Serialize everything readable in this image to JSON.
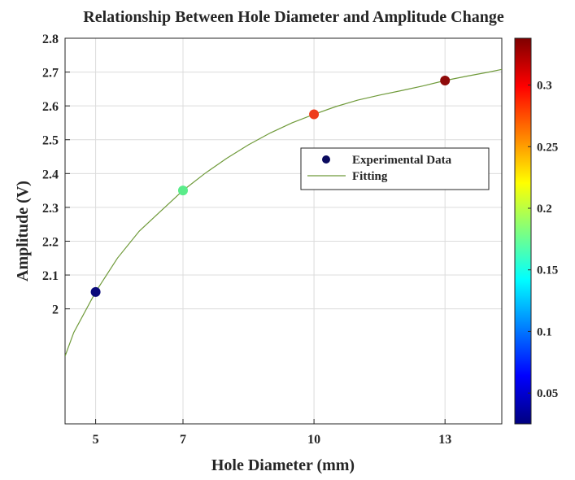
{
  "chart_data": {
    "type": "scatter",
    "title": "Relationship Between Hole Diameter and Amplitude Change",
    "xlabel": "Hole Diameter (mm)",
    "ylabel": "Amplitude (V)",
    "xlim": [
      4.3,
      14.3
    ],
    "ylim": [
      1.66,
      2.8
    ],
    "xticks": [
      5,
      7,
      10,
      13
    ],
    "xtick_labels": [
      "5",
      "7",
      "10",
      "13"
    ],
    "yticks": [
      2.0,
      2.1,
      2.2,
      2.3,
      2.4,
      2.5,
      2.6,
      2.7,
      2.8
    ],
    "ytick_labels": [
      "2",
      "2.1",
      "2.2",
      "2.3",
      "2.4",
      "2.5",
      "2.6",
      "2.7",
      "2.8"
    ],
    "grid": true,
    "legend_position": "center-right",
    "series": [
      {
        "name": "Experimental Data",
        "kind": "scatter",
        "x": [
          5,
          7,
          10,
          13
        ],
        "y": [
          2.05,
          2.35,
          2.575,
          2.675
        ],
        "color_values": [
          0.027,
          0.16,
          0.297,
          0.336
        ],
        "colors": [
          "#0a0a7a",
          "#5aec8a",
          "#ee3c1c",
          "#8f0a0a"
        ]
      },
      {
        "name": "Fitting",
        "kind": "line",
        "color": "#6f9a3a",
        "x": [
          4.3,
          4.5,
          5.0,
          5.5,
          6.0,
          6.5,
          7.0,
          7.5,
          8.0,
          8.5,
          9.0,
          9.5,
          10.0,
          10.5,
          11.0,
          11.5,
          12.0,
          12.5,
          13.0,
          13.5,
          14.0,
          14.3
        ],
        "y": [
          1.86,
          1.93,
          2.05,
          2.15,
          2.23,
          2.29,
          2.35,
          2.4,
          2.445,
          2.485,
          2.52,
          2.55,
          2.575,
          2.598,
          2.617,
          2.632,
          2.645,
          2.659,
          2.675,
          2.688,
          2.7,
          2.708
        ]
      }
    ],
    "colorbar": {
      "colormap": "jet",
      "range": [
        0.025,
        0.338
      ],
      "ticks": [
        0.05,
        0.1,
        0.15,
        0.2,
        0.25,
        0.3
      ],
      "tick_labels": [
        "0.05",
        "0.1",
        "0.15",
        "0.2",
        "0.25",
        "0.3"
      ],
      "position": "right"
    }
  }
}
